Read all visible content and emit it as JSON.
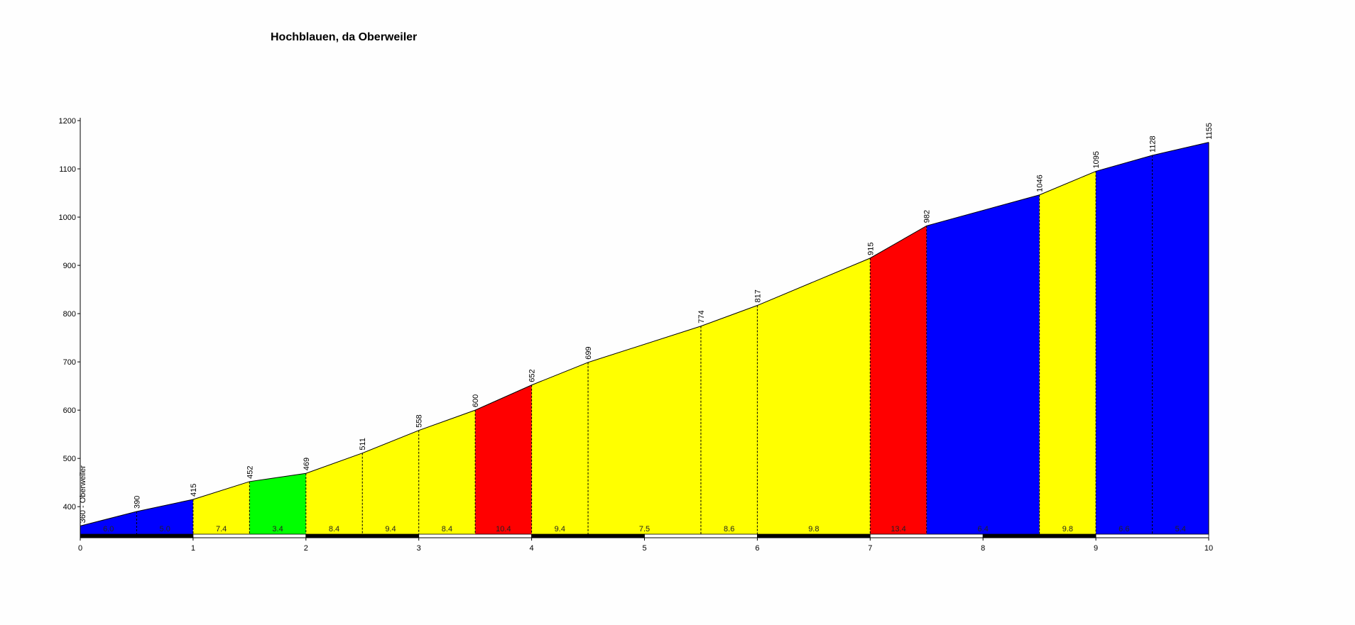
{
  "chart_data": {
    "type": "area",
    "title": "Hochblauen, da Oberweiler",
    "xlabel": "",
    "ylabel": "",
    "xlim": [
      0,
      10
    ],
    "ylim": [
      340,
      1200
    ],
    "x_ticks": [
      0,
      1,
      2,
      3,
      4,
      5,
      6,
      7,
      8,
      9,
      10
    ],
    "y_ticks": [
      400,
      500,
      600,
      700,
      800,
      900,
      1000,
      1100,
      1200
    ],
    "start_label": "360 - Oberweiler",
    "points": [
      {
        "x": 0,
        "y": 360,
        "label": ""
      },
      {
        "x": 0.5,
        "y": 390,
        "label": "390"
      },
      {
        "x": 1,
        "y": 415,
        "label": "415"
      },
      {
        "x": 1.5,
        "y": 452,
        "label": "452"
      },
      {
        "x": 2,
        "y": 469,
        "label": "469"
      },
      {
        "x": 2.5,
        "y": 511,
        "label": "511"
      },
      {
        "x": 3,
        "y": 558,
        "label": "558"
      },
      {
        "x": 3.5,
        "y": 600,
        "label": "600"
      },
      {
        "x": 4,
        "y": 652,
        "label": "652"
      },
      {
        "x": 4.5,
        "y": 699,
        "label": "699"
      },
      {
        "x": 5.5,
        "y": 774,
        "label": "774"
      },
      {
        "x": 6,
        "y": 817,
        "label": "817"
      },
      {
        "x": 7,
        "y": 915,
        "label": "915"
      },
      {
        "x": 7.5,
        "y": 982,
        "label": "982"
      },
      {
        "x": 8.5,
        "y": 1046,
        "label": "1046"
      },
      {
        "x": 9,
        "y": 1095,
        "label": "1095"
      },
      {
        "x": 9.5,
        "y": 1128,
        "label": "1128"
      },
      {
        "x": 10,
        "y": 1155,
        "label": "1155"
      }
    ],
    "segments": [
      {
        "x0": 0,
        "x1": 0.5,
        "gradient": "6.0",
        "color": "#0000ff"
      },
      {
        "x0": 0.5,
        "x1": 1,
        "gradient": "5.0",
        "color": "#0000ff"
      },
      {
        "x0": 1,
        "x1": 1.5,
        "gradient": "7.4",
        "color": "#ffff00"
      },
      {
        "x0": 1.5,
        "x1": 2,
        "gradient": "3.4",
        "color": "#00ff00"
      },
      {
        "x0": 2,
        "x1": 2.5,
        "gradient": "8.4",
        "color": "#ffff00"
      },
      {
        "x0": 2.5,
        "x1": 3,
        "gradient": "9.4",
        "color": "#ffff00"
      },
      {
        "x0": 3,
        "x1": 3.5,
        "gradient": "8.4",
        "color": "#ffff00"
      },
      {
        "x0": 3.5,
        "x1": 4,
        "gradient": "10.4",
        "color": "#ff0000"
      },
      {
        "x0": 4,
        "x1": 4.5,
        "gradient": "9.4",
        "color": "#ffff00"
      },
      {
        "x0": 4.5,
        "x1": 5.5,
        "gradient": "7.5",
        "color": "#ffff00"
      },
      {
        "x0": 5.5,
        "x1": 6,
        "gradient": "8.6",
        "color": "#ffff00"
      },
      {
        "x0": 6,
        "x1": 7,
        "gradient": "9.8",
        "color": "#ffff00"
      },
      {
        "x0": 7,
        "x1": 7.5,
        "gradient": "13.4",
        "color": "#ff0000"
      },
      {
        "x0": 7.5,
        "x1": 8.5,
        "gradient": "6.4",
        "color": "#0000ff"
      },
      {
        "x0": 8.5,
        "x1": 9,
        "gradient": "9.8",
        "color": "#ffff00"
      },
      {
        "x0": 9,
        "x1": 9.5,
        "gradient": "6.6",
        "color": "#0000ff"
      },
      {
        "x0": 9.5,
        "x1": 10,
        "gradient": "5.4",
        "color": "#0000ff"
      }
    ]
  }
}
